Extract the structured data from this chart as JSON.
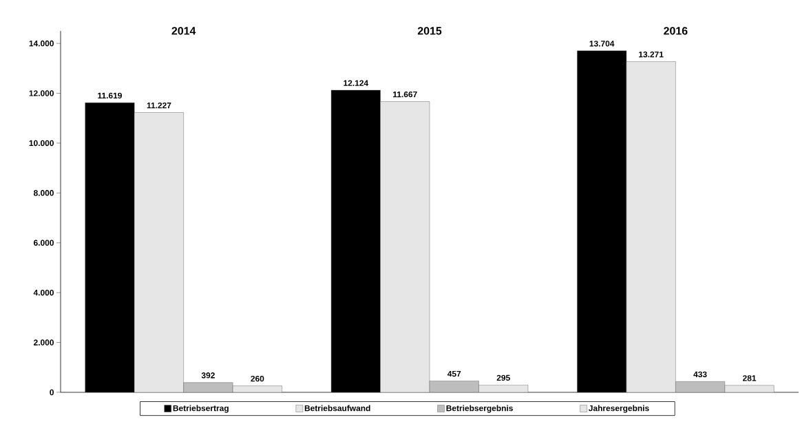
{
  "chart_data": {
    "type": "bar",
    "categories": [
      "2014",
      "2015",
      "2016"
    ],
    "series": [
      {
        "name": "Betriebsertrag",
        "color": "#000000",
        "values": [
          11619,
          12124,
          13704
        ],
        "value_labels": [
          "11.619",
          "12.124",
          "13.704"
        ]
      },
      {
        "name": "Betriebsaufwand",
        "color": "#e6e6e6",
        "values": [
          11227,
          11667,
          13271
        ],
        "value_labels": [
          "11.227",
          "11.667",
          "13.271"
        ]
      },
      {
        "name": "Betriebsergebnis",
        "color": "#bdbdbd",
        "values": [
          392,
          457,
          433
        ],
        "value_labels": [
          "392",
          "457",
          "433"
        ]
      },
      {
        "name": "Jahresergebnis",
        "color": "#e6e6e6",
        "values": [
          260,
          295,
          281
        ],
        "value_labels": [
          "260",
          "295",
          "281"
        ]
      }
    ],
    "ylim": [
      0,
      14500
    ],
    "yticks": [
      0,
      {
        "value": 2000,
        "label": "2.000"
      },
      {
        "value": 4000,
        "label": "4.000"
      },
      {
        "value": 6000,
        "label": "6.000"
      },
      {
        "value": 8000,
        "label": "8.000"
      },
      {
        "value": 10000,
        "label": "10.000"
      },
      {
        "value": 12000,
        "label": "12.000"
      },
      {
        "value": 14000,
        "label": "14.000"
      }
    ],
    "grid": false,
    "legend": "bottom"
  }
}
